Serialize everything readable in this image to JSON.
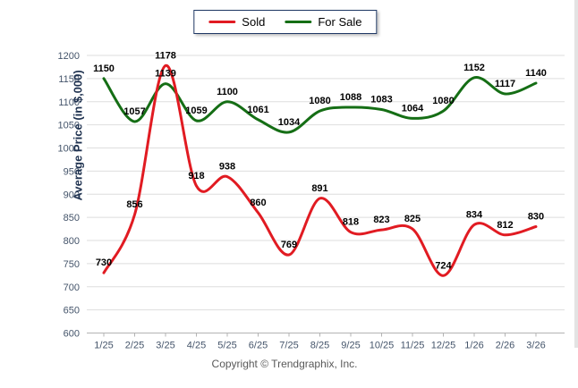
{
  "page": {
    "footer": "Copyright © Trendgraphix, Inc."
  },
  "chart_data": {
    "type": "line",
    "title": "",
    "xlabel": "",
    "ylabel": "Average Price (in $,000)",
    "ylim": [
      600,
      1200
    ],
    "ytick_step": 50,
    "grid": "horizontal",
    "smooth": true,
    "legend_position": "top-center",
    "categories": [
      "1/25",
      "2/25",
      "3/25",
      "4/25",
      "5/25",
      "6/25",
      "7/25",
      "8/25",
      "9/25",
      "10/25",
      "11/25",
      "12/25",
      "1/26",
      "2/26",
      "3/26"
    ],
    "series": [
      {
        "name": "Sold",
        "color": "#e11b22",
        "values": [
          730,
          856,
          1178,
          918,
          938,
          860,
          769,
          891,
          818,
          823,
          825,
          724,
          834,
          812,
          830
        ]
      },
      {
        "name": "For Sale",
        "color": "#156e15",
        "values": [
          1150,
          1057,
          1139,
          1059,
          1100,
          1061,
          1034,
          1080,
          1088,
          1083,
          1064,
          1080,
          1152,
          1117,
          1140
        ]
      }
    ]
  }
}
